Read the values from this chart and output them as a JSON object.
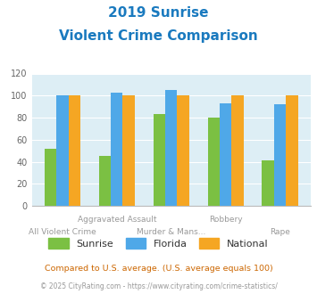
{
  "title_line1": "2019 Sunrise",
  "title_line2": "Violent Crime Comparison",
  "categories": [
    "All Violent Crime",
    "Aggravated Assault",
    "Murder & Mans...",
    "Robbery",
    "Rape"
  ],
  "sunrise_values": [
    52,
    45,
    83,
    80,
    41
  ],
  "florida_values": [
    100,
    103,
    105,
    93,
    92
  ],
  "national_values": [
    100,
    100,
    100,
    100,
    100
  ],
  "sunrise_color": "#7bc043",
  "florida_color": "#4fa8e8",
  "national_color": "#f5a623",
  "bg_color": "#ddeef5",
  "ylim": [
    0,
    120
  ],
  "yticks": [
    0,
    20,
    40,
    60,
    80,
    100,
    120
  ],
  "legend_labels": [
    "Sunrise",
    "Florida",
    "National"
  ],
  "footer1": "Compared to U.S. average. (U.S. average equals 100)",
  "footer2": "© 2025 CityRating.com - https://www.cityrating.com/crime-statistics/",
  "title_color": "#1a7abf",
  "footer1_color": "#cc6600",
  "footer2_color": "#999999",
  "bar_width": 0.22
}
